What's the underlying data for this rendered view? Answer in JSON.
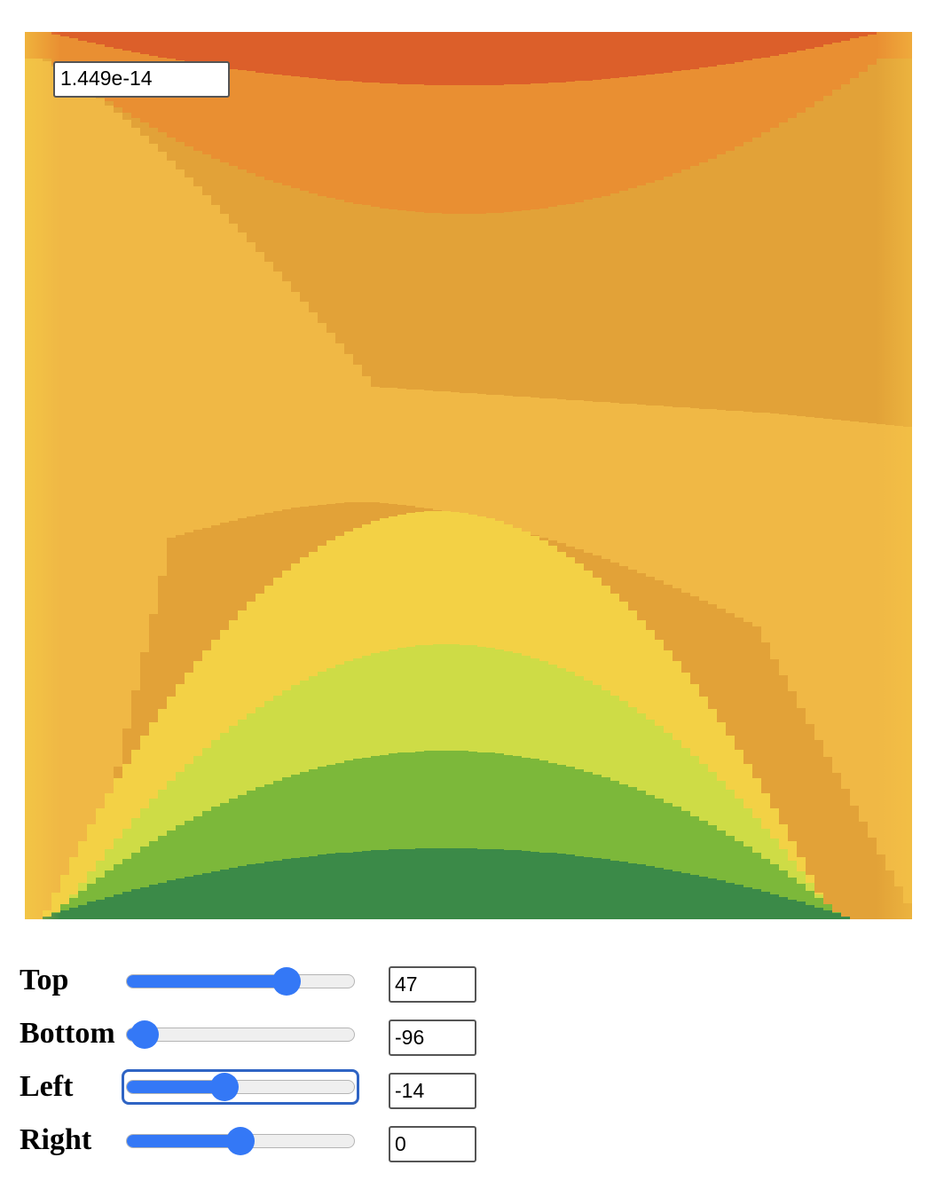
{
  "readout": {
    "value": "1.449e-14"
  },
  "heatmap": {
    "palette": [
      "#dc5f2a",
      "#e98f32",
      "#e2a238",
      "#f0b845",
      "#f3d145",
      "#cedc46",
      "#7cb83a",
      "#3b8a48"
    ]
  },
  "controls": [
    {
      "id": "top",
      "label": "Top",
      "value": "47",
      "fraction": 0.7
    },
    {
      "id": "bottom",
      "label": "Bottom",
      "value": "-96",
      "fraction": 0.08
    },
    {
      "id": "left",
      "label": "Left",
      "value": "-14",
      "fraction": 0.43
    },
    {
      "id": "right",
      "label": "Right",
      "value": "0",
      "fraction": 0.5
    }
  ]
}
